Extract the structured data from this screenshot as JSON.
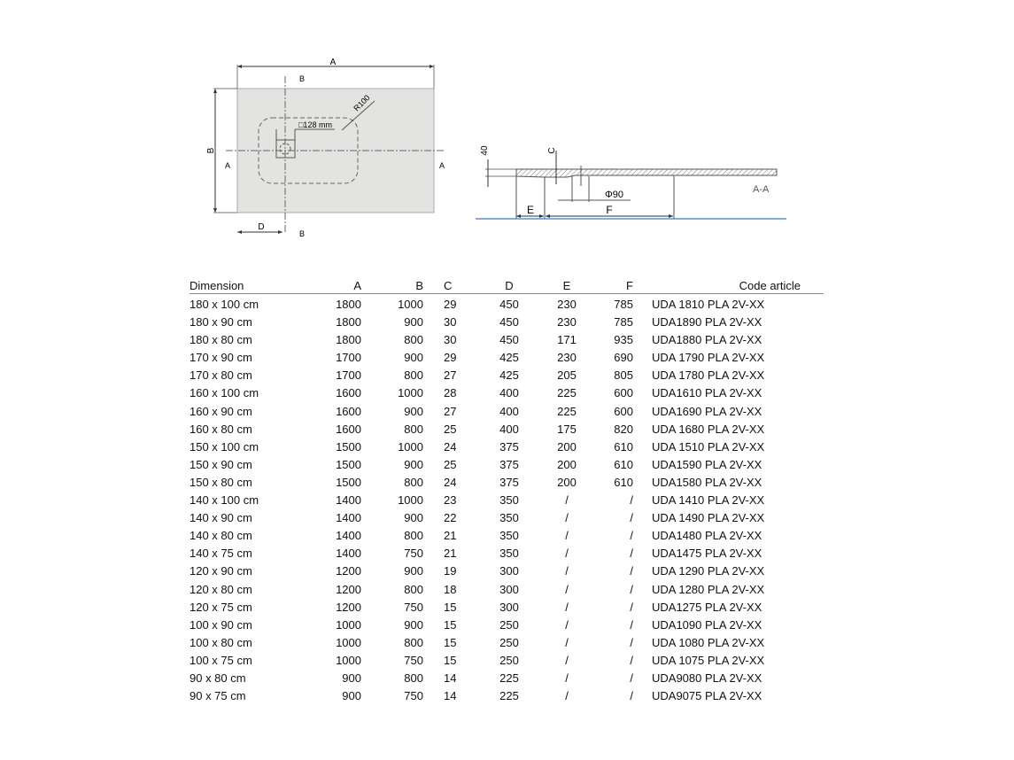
{
  "drawing": {
    "plan_view": {
      "label_a": "A",
      "label_b": "B",
      "label_d": "D",
      "section_b_top": "B",
      "section_b_bottom": "B",
      "section_a_left": "A",
      "section_a_right": "A",
      "radius": "R100",
      "drain_size": "□128 mm",
      "tray_color": "#e3e3e1"
    },
    "section_view": {
      "height": "40",
      "label_c": "C",
      "label_e": "E",
      "label_f": "F",
      "drain_diameter": "Φ90",
      "section_label": "A-A",
      "floor_color": "#3a7fc0"
    }
  },
  "table": {
    "headers": {
      "dimension": "Dimension",
      "a": "A",
      "b": "B",
      "c": "C",
      "d": "D",
      "e": "E",
      "f": "F",
      "code": "Code article"
    },
    "rows": [
      [
        "180 x 100 cm",
        "1800",
        "1000",
        "29",
        "450",
        "230",
        "785",
        "UDA 1810 PLA 2V-XX"
      ],
      [
        "180 x 90 cm",
        "1800",
        "900",
        "30",
        "450",
        "230",
        "785",
        "UDA1890 PLA 2V-XX"
      ],
      [
        "180 x 80 cm",
        "1800",
        "800",
        "30",
        "450",
        "171",
        "935",
        "UDA1880 PLA 2V-XX"
      ],
      [
        "170 x 90 cm",
        "1700",
        "900",
        "29",
        "425",
        "230",
        "690",
        "UDA 1790 PLA 2V-XX"
      ],
      [
        "170 x 80 cm",
        "1700",
        "800",
        "27",
        "425",
        "205",
        "805",
        "UDA 1780 PLA 2V-XX"
      ],
      [
        "160 x 100 cm",
        "1600",
        "1000",
        "28",
        "400",
        "225",
        "600",
        "UDA1610 PLA 2V-XX"
      ],
      [
        "160 x 90 cm",
        "1600",
        "900",
        "27",
        "400",
        "225",
        "600",
        "UDA1690 PLA 2V-XX"
      ],
      [
        "160 x 80 cm",
        "1600",
        "800",
        "25",
        "400",
        "175",
        "820",
        "UDA 1680 PLA 2V-XX"
      ],
      [
        "150 x 100 cm",
        "1500",
        "1000",
        "24",
        "375",
        "200",
        "610",
        "UDA 1510 PLA 2V-XX"
      ],
      [
        "150 x 90 cm",
        "1500",
        "900",
        "25",
        "375",
        "200",
        "610",
        "UDA1590 PLA 2V-XX"
      ],
      [
        "150 x 80 cm",
        "1500",
        "800",
        "24",
        "375",
        "200",
        "610",
        "UDA1580 PLA 2V-XX"
      ],
      [
        "140 x 100 cm",
        "1400",
        "1000",
        "23",
        "350",
        "/",
        "/",
        "UDA 1410 PLA 2V-XX"
      ],
      [
        "140 x 90 cm",
        "1400",
        "900",
        "22",
        "350",
        "/",
        "/",
        "UDA 1490 PLA 2V-XX"
      ],
      [
        "140 x 80 cm",
        "1400",
        "800",
        "21",
        "350",
        "/",
        "/",
        "UDA1480 PLA 2V-XX"
      ],
      [
        "140 x 75 cm",
        "1400",
        "750",
        "21",
        "350",
        "/",
        "/",
        "UDA1475 PLA 2V-XX"
      ],
      [
        "120 x 90 cm",
        "1200",
        "900",
        "19",
        "300",
        "/",
        "/",
        "UDA 1290 PLA 2V-XX"
      ],
      [
        "120 x 80 cm",
        "1200",
        "800",
        "18",
        "300",
        "/",
        "/",
        "UDA 1280 PLA 2V-XX"
      ],
      [
        "120 x 75 cm",
        "1200",
        "750",
        "15",
        "300",
        "/",
        "/",
        "UDA1275 PLA 2V-XX"
      ],
      [
        "100 x 90 cm",
        "1000",
        "900",
        "15",
        "250",
        "/",
        "/",
        "UDA1090 PLA 2V-XX"
      ],
      [
        "100 x 80 cm",
        "1000",
        "800",
        "15",
        "250",
        "/",
        "/",
        "UDA 1080 PLA 2V-XX"
      ],
      [
        "100 x 75 cm",
        "1000",
        "750",
        "15",
        "250",
        "/",
        "/",
        "UDA 1075 PLA 2V-XX"
      ],
      [
        "90 x 80 cm",
        "900",
        "800",
        "14",
        "225",
        "/",
        "/",
        "UDA9080 PLA 2V-XX"
      ],
      [
        "90 x 75 cm",
        "900",
        "750",
        "14",
        "225",
        "/",
        "/",
        "UDA9075 PLA 2V-XX"
      ]
    ]
  }
}
